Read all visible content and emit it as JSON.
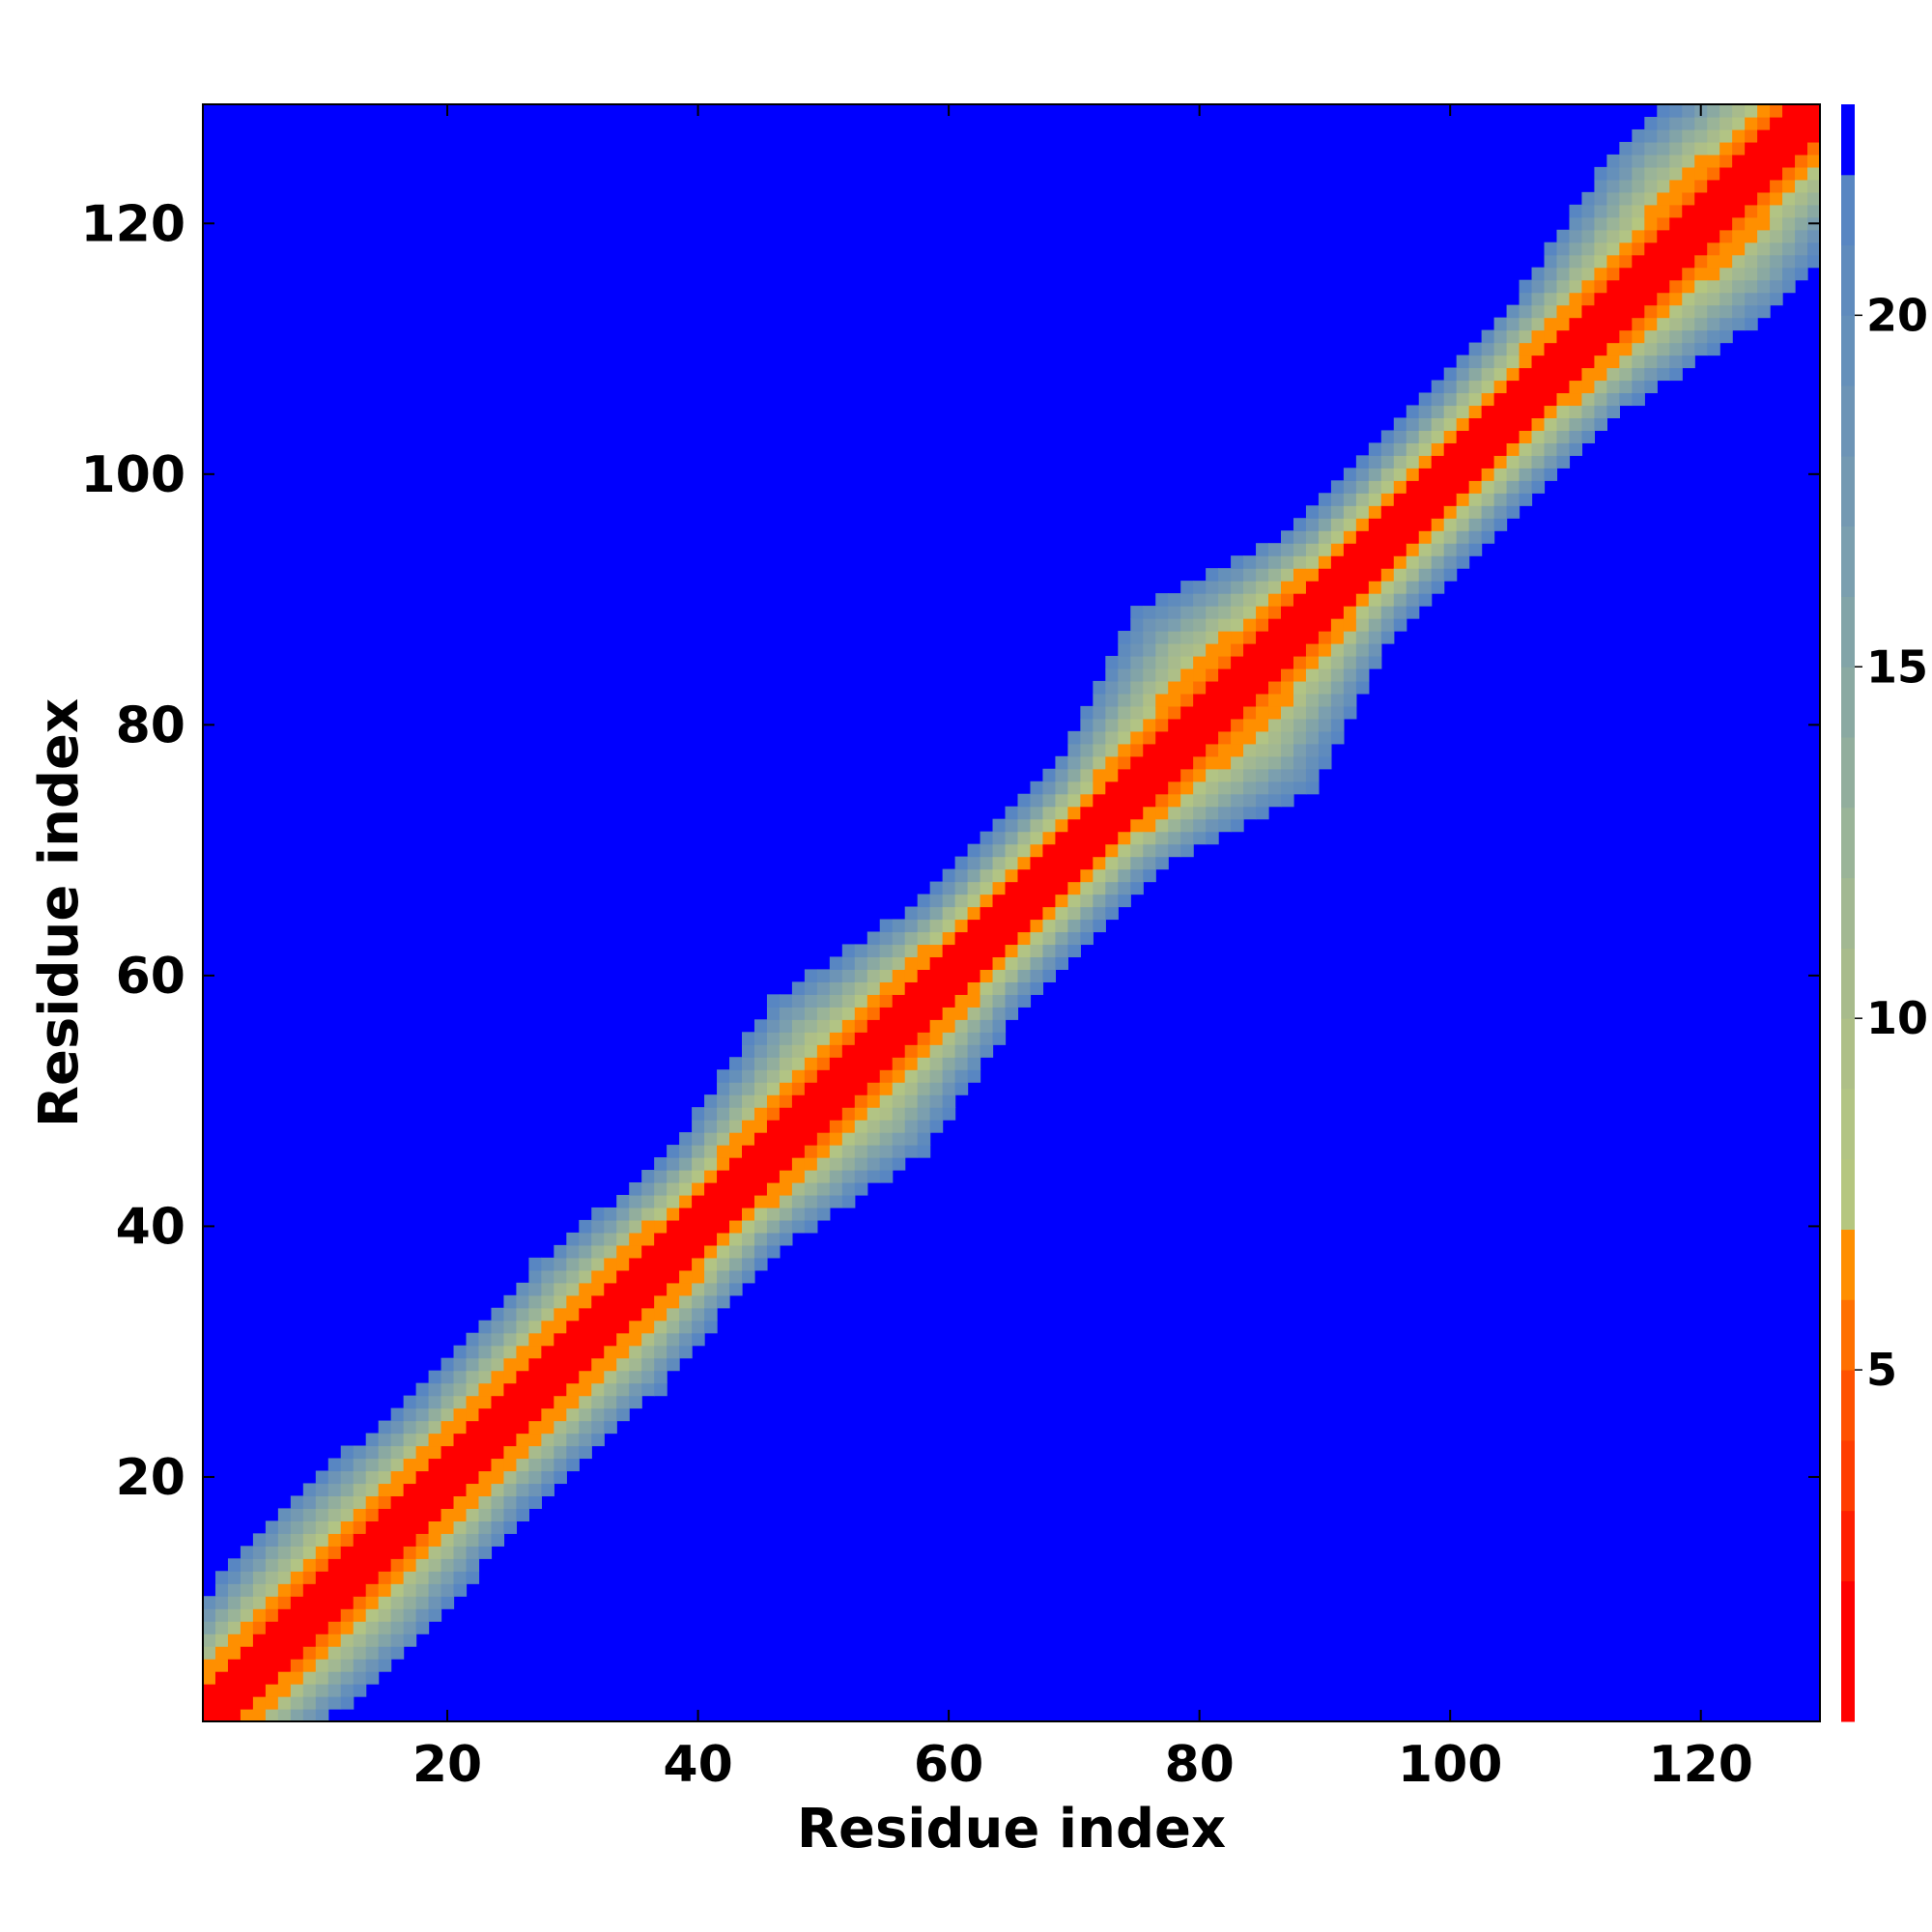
{
  "chart_data": {
    "type": "heatmap",
    "title": "",
    "xlabel": "Residue index",
    "ylabel": "Residue index",
    "n_residues": 129,
    "xlim": [
      1,
      129
    ],
    "ylim": [
      1,
      129
    ],
    "x_ticks": [
      20,
      40,
      60,
      80,
      100,
      120
    ],
    "y_ticks": [
      20,
      40,
      60,
      80,
      100,
      120
    ],
    "colorbar": {
      "range": [
        0,
        23
      ],
      "ticks": [
        5,
        10,
        15,
        20
      ],
      "levels": [
        {
          "max": 2,
          "color": "#ff0000"
        },
        {
          "max": 3,
          "color": "#ff1f00"
        },
        {
          "max": 4,
          "color": "#ff3d00"
        },
        {
          "max": 5,
          "color": "#ff5200"
        },
        {
          "max": 6,
          "color": "#ff7000"
        },
        {
          "max": 7,
          "color": "#ff8f00"
        },
        {
          "max": 8,
          "color": "#b5c67f"
        },
        {
          "max": 9,
          "color": "#b2c484"
        },
        {
          "max": 10,
          "color": "#aebf87"
        },
        {
          "max": 11,
          "color": "#a8bb8c"
        },
        {
          "max": 12,
          "color": "#a2b892"
        },
        {
          "max": 13,
          "color": "#9ab498"
        },
        {
          "max": 14,
          "color": "#92ae9d"
        },
        {
          "max": 15,
          "color": "#8aa9a2"
        },
        {
          "max": 16,
          "color": "#82a4a8"
        },
        {
          "max": 17,
          "color": "#7b9faf"
        },
        {
          "max": 18,
          "color": "#7499b2"
        },
        {
          "max": 19,
          "color": "#6d94b6"
        },
        {
          "max": 20,
          "color": "#6590ba"
        },
        {
          "max": 21,
          "color": "#5f8bbd"
        },
        {
          "max": 22,
          "color": "#5886c2"
        },
        {
          "max": 23,
          "color": "#0000ff"
        }
      ]
    },
    "matrix": {
      "description_of_values": "inter-residue distance",
      "background_value": 23,
      "band_half_width": [
        {
          "residue": 1,
          "width": 9
        },
        {
          "residue": 12,
          "width": 11
        },
        {
          "residue": 22,
          "width": 9
        },
        {
          "residue": 32,
          "width": 10
        },
        {
          "residue": 42,
          "width": 8
        },
        {
          "residue": 52,
          "width": 12
        },
        {
          "residue": 62,
          "width": 8
        },
        {
          "residue": 72,
          "width": 8
        },
        {
          "residue": 82,
          "width": 14
        },
        {
          "residue": 92,
          "width": 8
        },
        {
          "residue": 102,
          "width": 8
        },
        {
          "residue": 110,
          "width": 9
        },
        {
          "residue": 120,
          "width": 13
        },
        {
          "residue": 129,
          "width": 10
        }
      ]
    }
  }
}
